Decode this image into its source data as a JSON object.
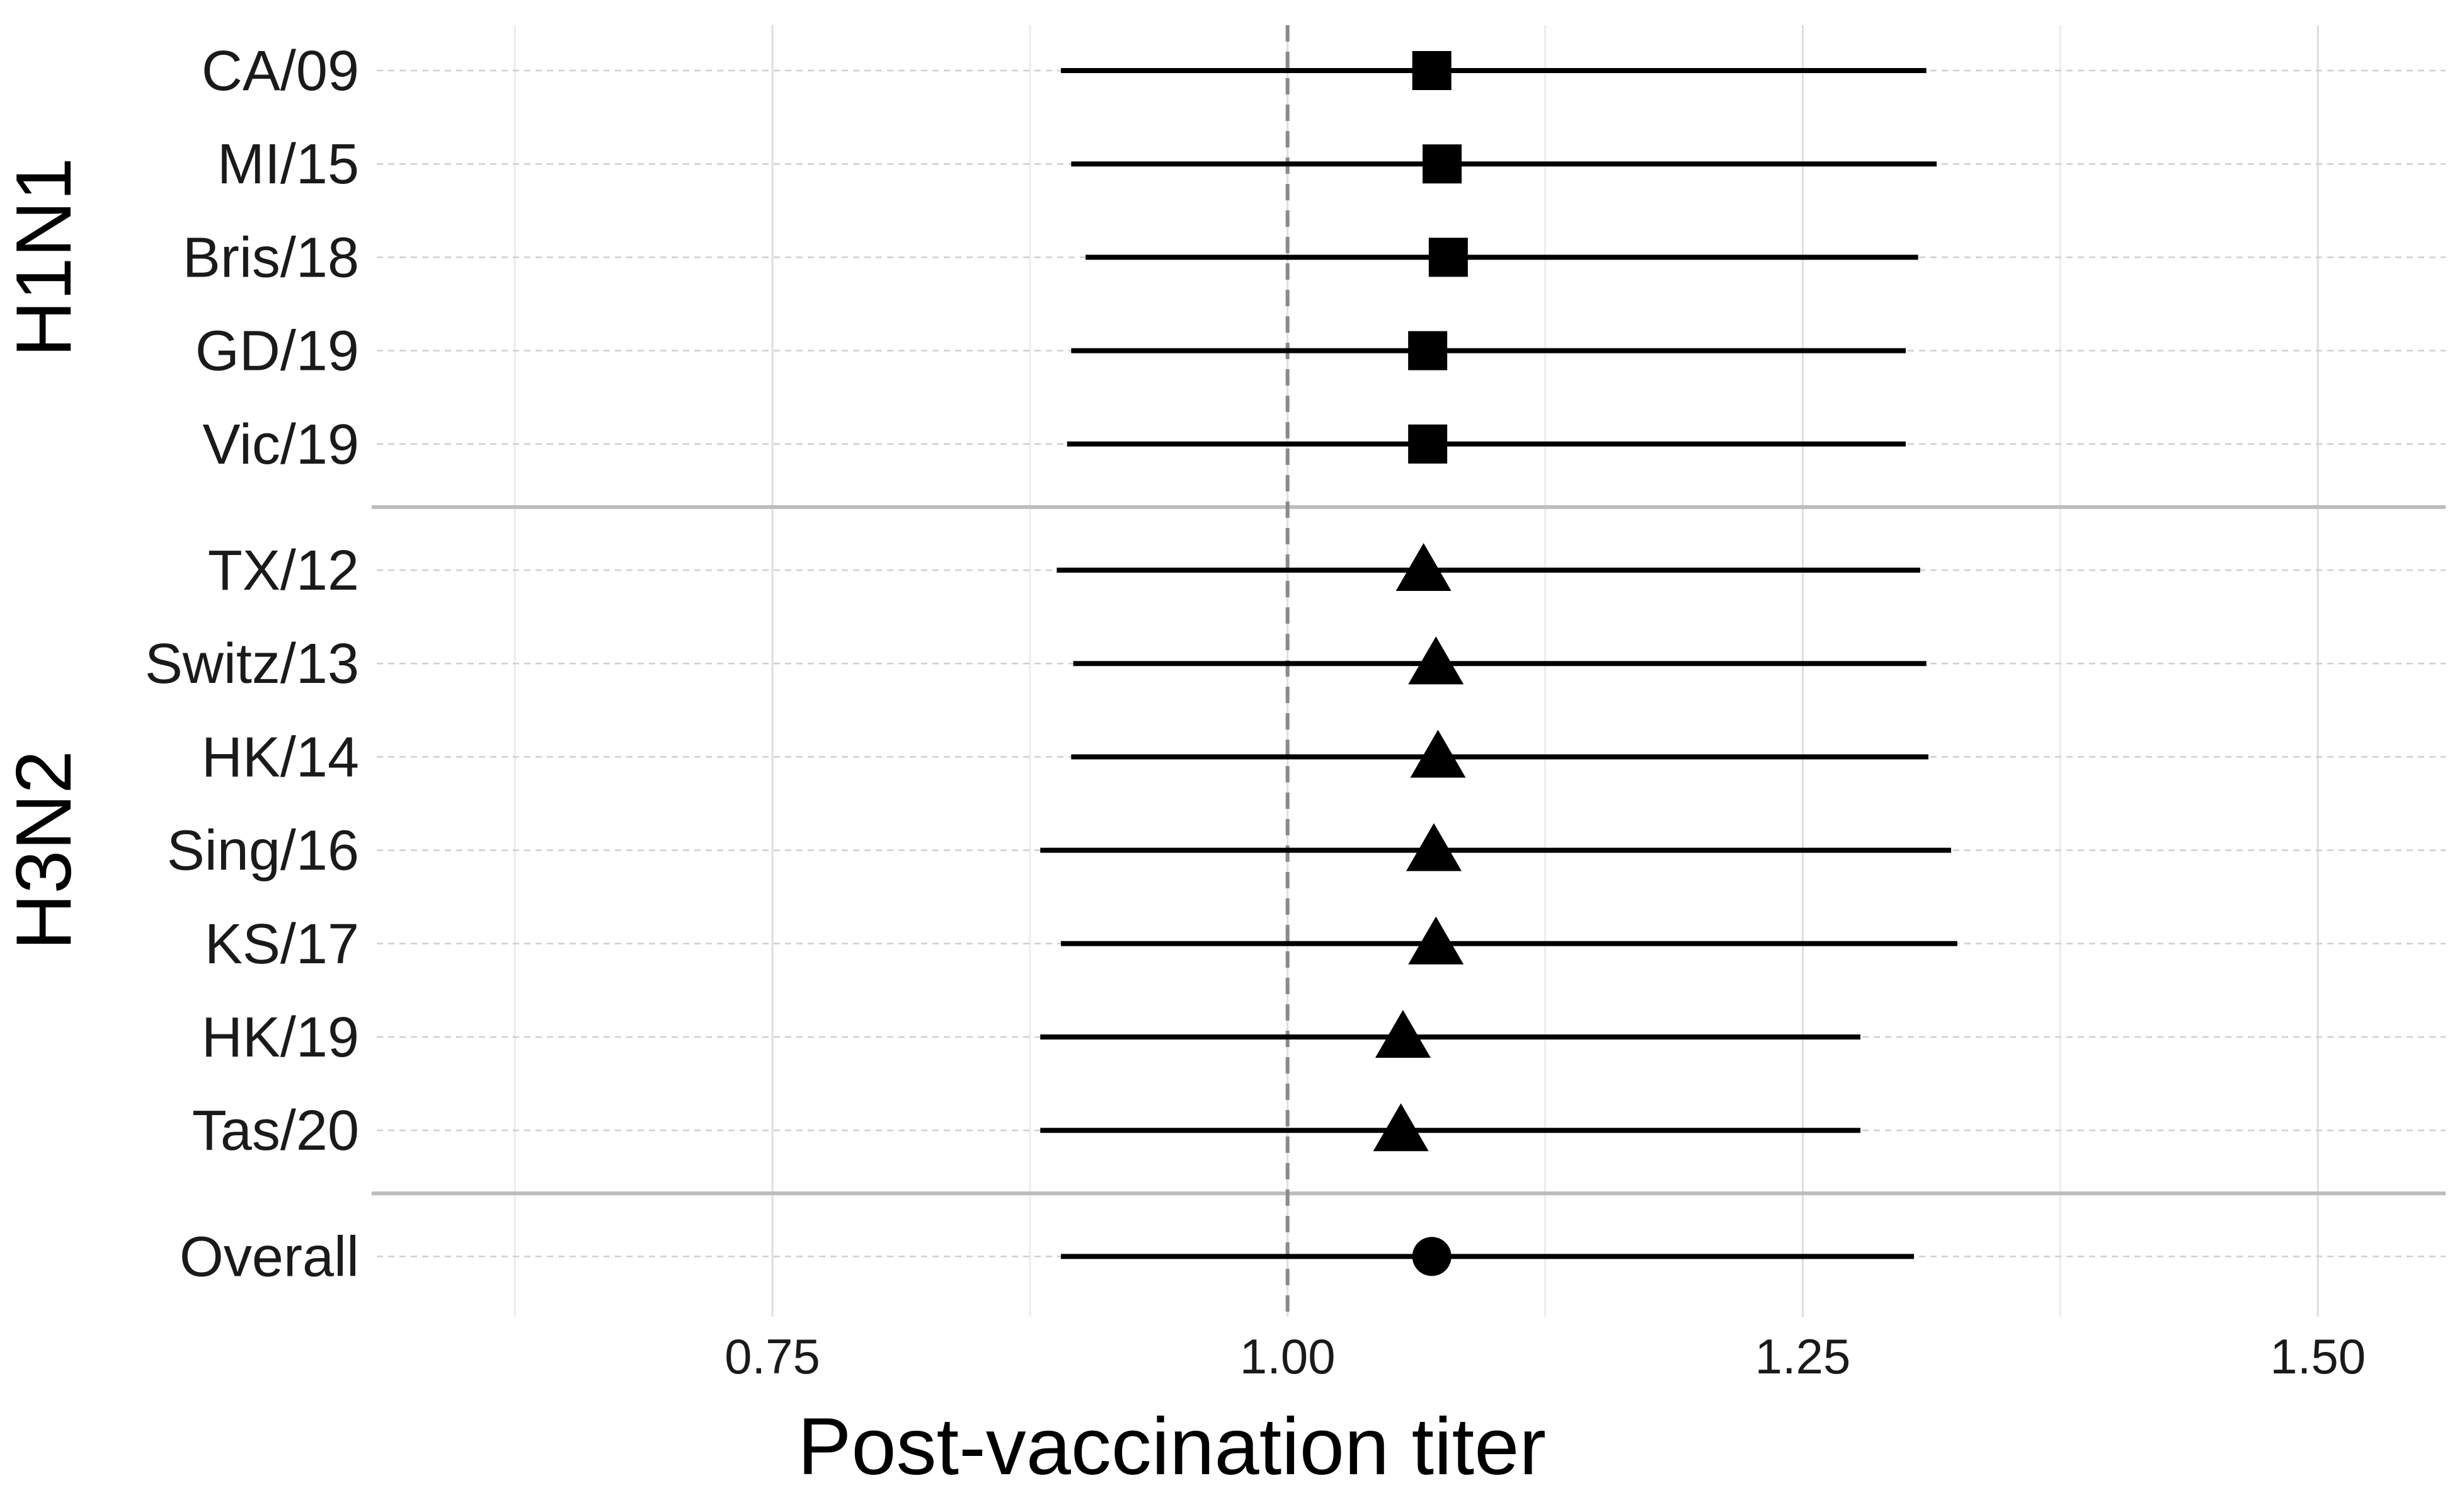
{
  "chart_data": {
    "type": "forest",
    "xlabel": "Post-vaccination titer",
    "xlim": [
      0.558,
      1.562
    ],
    "x_ticks": [
      0.75,
      1.0,
      1.25,
      1.5
    ],
    "x_tick_labels": [
      "0.75",
      "1.00",
      "1.25",
      "1.50"
    ],
    "reference_line": 1.0,
    "grid": true,
    "groups": [
      {
        "name": "H1N1",
        "marker": "square",
        "rows": [
          {
            "label": "CA/09",
            "estimate": 1.07,
            "lower": 0.89,
            "upper": 1.31
          },
          {
            "label": "MI/15",
            "estimate": 1.075,
            "lower": 0.895,
            "upper": 1.315
          },
          {
            "label": "Bris/18",
            "estimate": 1.078,
            "lower": 0.902,
            "upper": 1.306
          },
          {
            "label": "GD/19",
            "estimate": 1.068,
            "lower": 0.895,
            "upper": 1.3
          },
          {
            "label": "Vic/19",
            "estimate": 1.068,
            "lower": 0.893,
            "upper": 1.3
          }
        ]
      },
      {
        "name": "H3N2",
        "marker": "triangle",
        "rows": [
          {
            "label": "TX/12",
            "estimate": 1.066,
            "lower": 0.888,
            "upper": 1.307
          },
          {
            "label": "Switz/13",
            "estimate": 1.072,
            "lower": 0.896,
            "upper": 1.31
          },
          {
            "label": "HK/14",
            "estimate": 1.073,
            "lower": 0.895,
            "upper": 1.311
          },
          {
            "label": "Sing/16",
            "estimate": 1.071,
            "lower": 0.88,
            "upper": 1.322
          },
          {
            "label": "KS/17",
            "estimate": 1.072,
            "lower": 0.89,
            "upper": 1.325
          },
          {
            "label": "HK/19",
            "estimate": 1.056,
            "lower": 0.88,
            "upper": 1.278
          },
          {
            "label": "Tas/20",
            "estimate": 1.055,
            "lower": 0.88,
            "upper": 1.278
          }
        ]
      },
      {
        "name": "",
        "marker": "circle",
        "rows": [
          {
            "label": "Overall",
            "estimate": 1.07,
            "lower": 0.89,
            "upper": 1.304
          }
        ]
      }
    ]
  }
}
